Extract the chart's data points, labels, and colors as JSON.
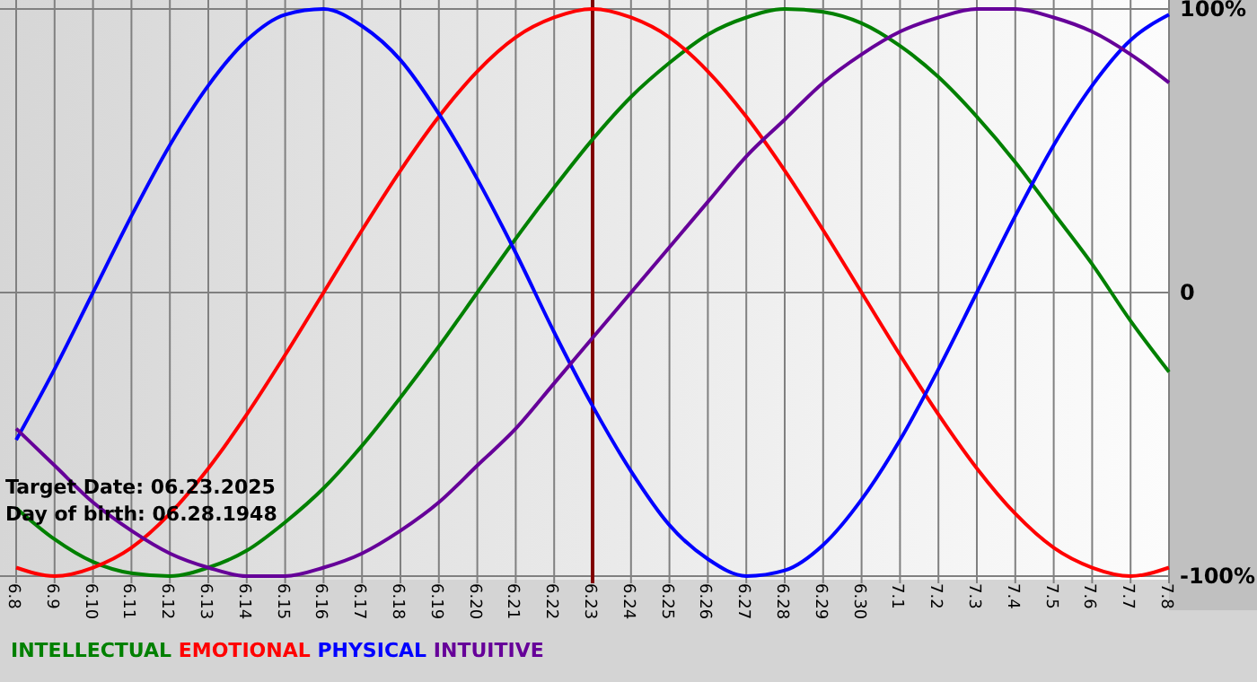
{
  "chart_data": {
    "type": "line",
    "categories": [
      "6.8",
      "6.9",
      "6.10",
      "6.11",
      "6.12",
      "6.13",
      "6.14",
      "6.15",
      "6.16",
      "6.17",
      "6.18",
      "6.19",
      "6.20",
      "6.21",
      "6.22",
      "6.23",
      "6.24",
      "6.25",
      "6.26",
      "6.27",
      "6.28",
      "6.29",
      "6.30",
      "7.1",
      "7.2",
      "7.3",
      "7.4",
      "7.5",
      "7.6",
      "7.7",
      "7.8"
    ],
    "series": [
      {
        "name": "INTELLECTUAL",
        "color": "#008000",
        "values": [
          -76,
          -87,
          -95,
          -99,
          -100,
          -97,
          -91,
          -81,
          -69,
          -54,
          -37,
          -19,
          0,
          19,
          37,
          54,
          69,
          81,
          91,
          97,
          100,
          99,
          95,
          87,
          76,
          62,
          46,
          28,
          10,
          -10,
          -28
        ]
      },
      {
        "name": "EMOTIONAL",
        "color": "#ff0000",
        "values": [
          -97,
          -100,
          -97,
          -90,
          -78,
          -62,
          -43,
          -22,
          0,
          22,
          43,
          62,
          78,
          90,
          97,
          100,
          97,
          90,
          78,
          62,
          43,
          22,
          0,
          -22,
          -43,
          -62,
          -78,
          -90,
          -97,
          -100,
          -97
        ]
      },
      {
        "name": "PHYSICAL",
        "color": "#0000ff",
        "values": [
          -52,
          -27,
          0,
          27,
          52,
          73,
          89,
          98,
          100,
          94,
          82,
          63,
          40,
          14,
          -14,
          -40,
          -63,
          -82,
          -94,
          -100,
          -98,
          -89,
          -73,
          -52,
          -27,
          0,
          27,
          52,
          73,
          89,
          98
        ]
      },
      {
        "name": "INTUITIVE",
        "color": "#660099",
        "values": [
          -48,
          -61,
          -74,
          -84,
          -92,
          -97,
          -100,
          -100,
          -97,
          -92,
          -84,
          -74,
          -61,
          -48,
          -32,
          -16,
          0,
          16,
          32,
          48,
          61,
          74,
          84,
          92,
          97,
          100,
          100,
          97,
          92,
          84,
          74
        ]
      }
    ],
    "ylim": [
      -100,
      100
    ],
    "yticks": [
      {
        "value": 100,
        "label": "100%"
      },
      0,
      {
        "value": -100,
        "label": "-100%"
      }
    ],
    "grid": true,
    "legend": "bottom left",
    "marker": "none",
    "line_style": "solid",
    "ref_lines": [
      {
        "axis": "x",
        "value": "6.23",
        "color": "#800000"
      }
    ],
    "annotations": [
      "Target Date: 06.23.2025",
      "Day of birth: 06.28.1948"
    ]
  }
}
